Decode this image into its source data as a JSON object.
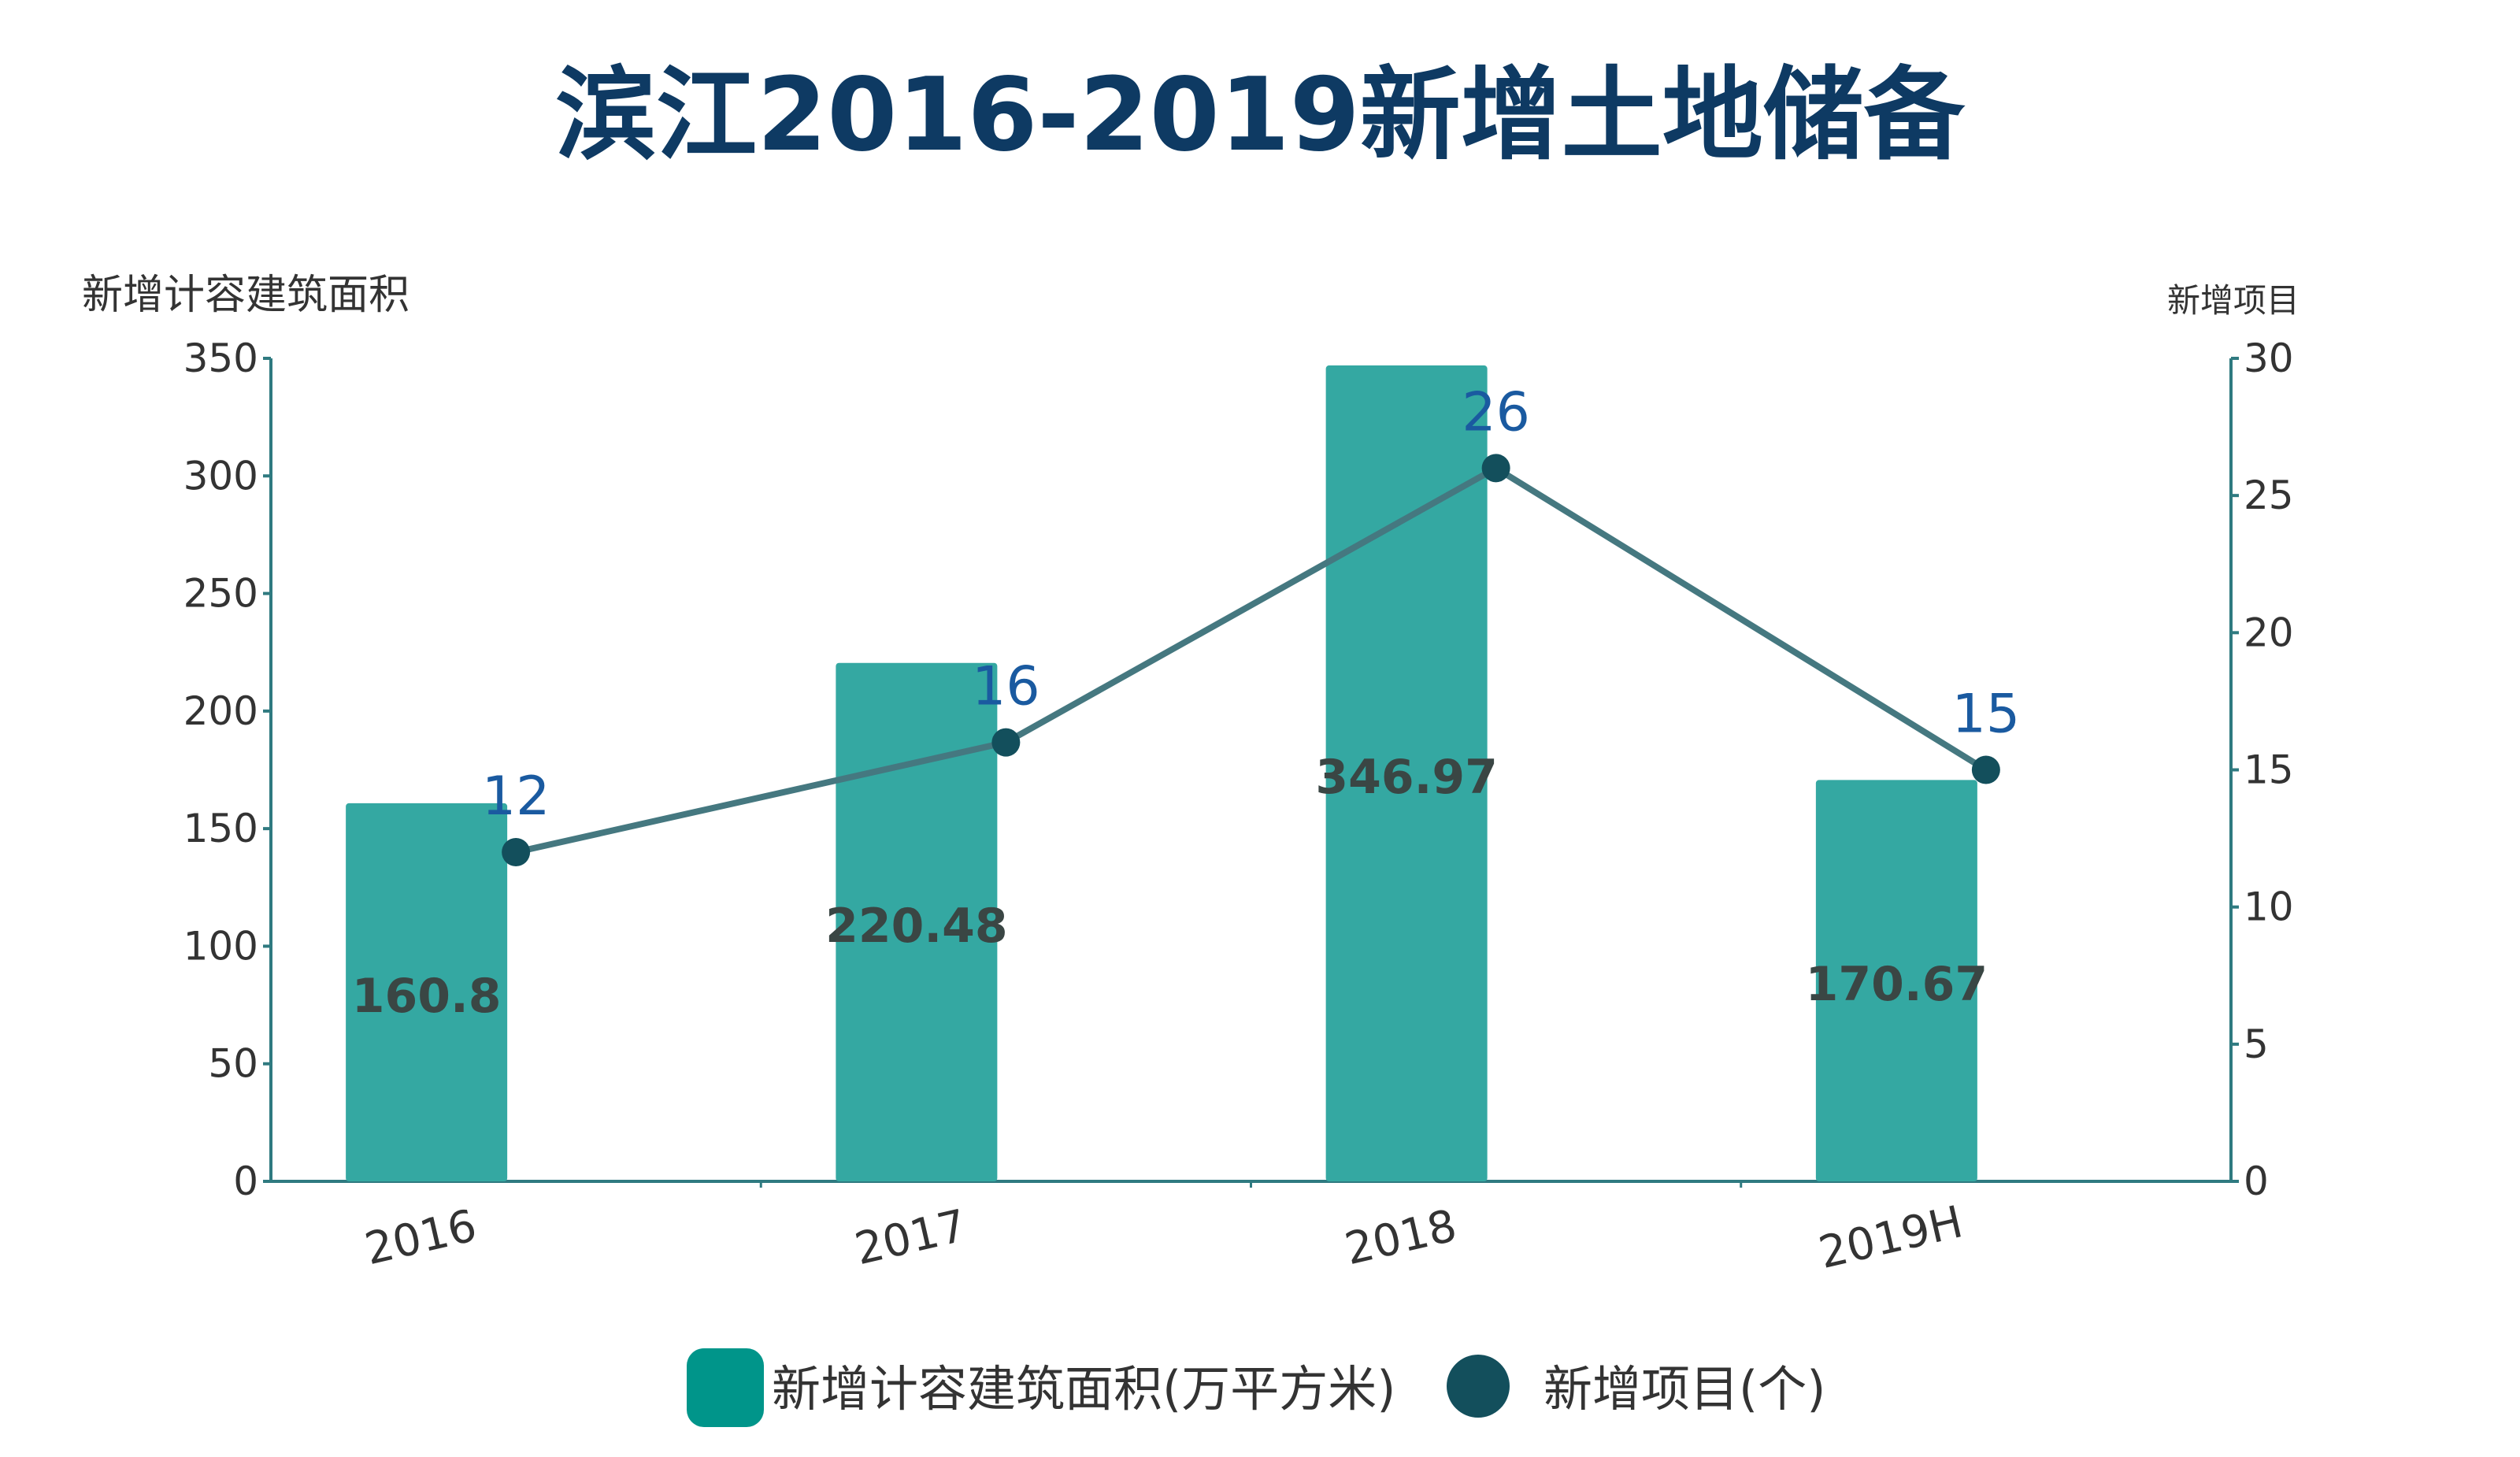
{
  "chart_data": {
    "type": "bar+line",
    "title": "滨江2016-2019新增土地储备",
    "categories": [
      "2016",
      "2017",
      "2018",
      "2019H"
    ],
    "series": [
      {
        "name": "新增计容建筑面积(万平方米)",
        "type": "bar",
        "axis": "left",
        "values": [
          160.8,
          220.48,
          346.97,
          170.67
        ],
        "color": "#34a8a2",
        "label_color": "#3a4644"
      },
      {
        "name": "新增项目(个)",
        "type": "line",
        "axis": "right",
        "values": [
          12,
          16,
          26,
          15
        ],
        "color": "#457880",
        "marker_color": "#134f5c",
        "label_color": "#1a5aa0"
      }
    ],
    "ylabel_left": "新增计容建筑面积",
    "ylabel_right": "新增项目",
    "ylim_left": [
      0,
      350
    ],
    "yticks_left": [
      "0",
      "50",
      "100",
      "150",
      "200",
      "250",
      "300",
      "350"
    ],
    "ylim_right": [
      0,
      30
    ],
    "yticks_right": [
      "0",
      "5",
      "10",
      "15",
      "20",
      "25",
      "30"
    ],
    "grid": false,
    "legend": "bottom-center",
    "axis_color": "#2f7a80"
  }
}
